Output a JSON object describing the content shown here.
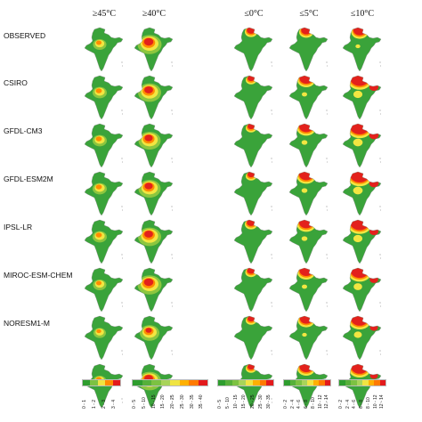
{
  "columns": [
    {
      "label": "≥45°C"
    },
    {
      "label": "≥40°C"
    },
    {
      "label": "≤0°C"
    },
    {
      "label": "≤5°C"
    },
    {
      "label": "≤10°C"
    }
  ],
  "rows": [
    {
      "label": "OBSERVED"
    },
    {
      "label": "CSIRO"
    },
    {
      "label": "GFDL-CM3"
    },
    {
      "label": "GFDL-ESM2M"
    },
    {
      "label": "IPSL-LR"
    },
    {
      "label": "MIROC-ESM-CHEM"
    },
    {
      "label": "NORESM1-M"
    },
    {
      "label": ""
    }
  ],
  "legends": [
    {
      "name": "legend-hot-45",
      "colors": [
        "#2e9d2e",
        "#7cc242",
        "#f0e442",
        "#ff8c00",
        "#e31a1c"
      ],
      "ticks": [
        "0 - 1",
        "1 - 2",
        "2 - 3",
        "3 - 4"
      ]
    },
    {
      "name": "legend-hot-40",
      "colors": [
        "#2e9d2e",
        "#56b03a",
        "#7cc242",
        "#a8d45a",
        "#f0e442",
        "#ffb000",
        "#ff7a00",
        "#e31a1c"
      ],
      "ticks": [
        "0 - 5",
        "5 - 10",
        "10 - 15",
        "15 - 20",
        "20 - 25",
        "25 - 30",
        "30 - 35",
        "35 - 40"
      ]
    },
    {
      "name": "legend-cold-0",
      "colors": [
        "#2e9d2e",
        "#56b03a",
        "#7cc242",
        "#a8d45a",
        "#f0e442",
        "#ffb000",
        "#ff7a00",
        "#e31a1c"
      ],
      "ticks": [
        "0 - 5",
        "5 - 10",
        "10 - 15",
        "15 - 20",
        "20 - 25",
        "25 - 30",
        "30 - 35"
      ]
    },
    {
      "name": "legend-cold-5",
      "colors": [
        "#2e9d2e",
        "#56b03a",
        "#7cc242",
        "#a8d45a",
        "#f0e442",
        "#ffb000",
        "#ff7a00",
        "#e31a1c"
      ],
      "ticks": [
        "0 - 2",
        "2 - 4",
        "4 - 6",
        "6 - 8",
        "8 - 10",
        "10 - 12",
        "12 - 14"
      ]
    },
    {
      "name": "legend-cold-10",
      "colors": [
        "#2e9d2e",
        "#56b03a",
        "#7cc242",
        "#a8d45a",
        "#f0e442",
        "#ffb000",
        "#ff7a00",
        "#e31a1c"
      ],
      "ticks": [
        "0 - 2",
        "2 - 4",
        "4 - 6",
        "6 - 8",
        "8 - 10",
        "10 - 12",
        "12 - 14"
      ]
    }
  ],
  "palette": {
    "green": "#3aa33a",
    "lightgreen": "#8cc63f",
    "yellow": "#f2e641",
    "orange": "#ff8c00",
    "red": "#e3211c"
  },
  "intensity": [
    [
      0.15,
      0.75,
      0.2,
      0.3,
      0.45
    ],
    [
      0.2,
      0.7,
      0.1,
      0.5,
      0.85
    ],
    [
      0.2,
      0.65,
      0.1,
      0.55,
      0.9
    ],
    [
      0.2,
      0.65,
      0.1,
      0.55,
      0.9
    ],
    [
      0.2,
      0.7,
      0.2,
      0.55,
      0.85
    ],
    [
      0.15,
      0.75,
      0.15,
      0.5,
      0.8
    ],
    [
      0.1,
      0.5,
      0.1,
      0.45,
      0.75
    ],
    [
      0.15,
      0.7,
      0.1,
      0.5,
      0.75
    ]
  ]
}
